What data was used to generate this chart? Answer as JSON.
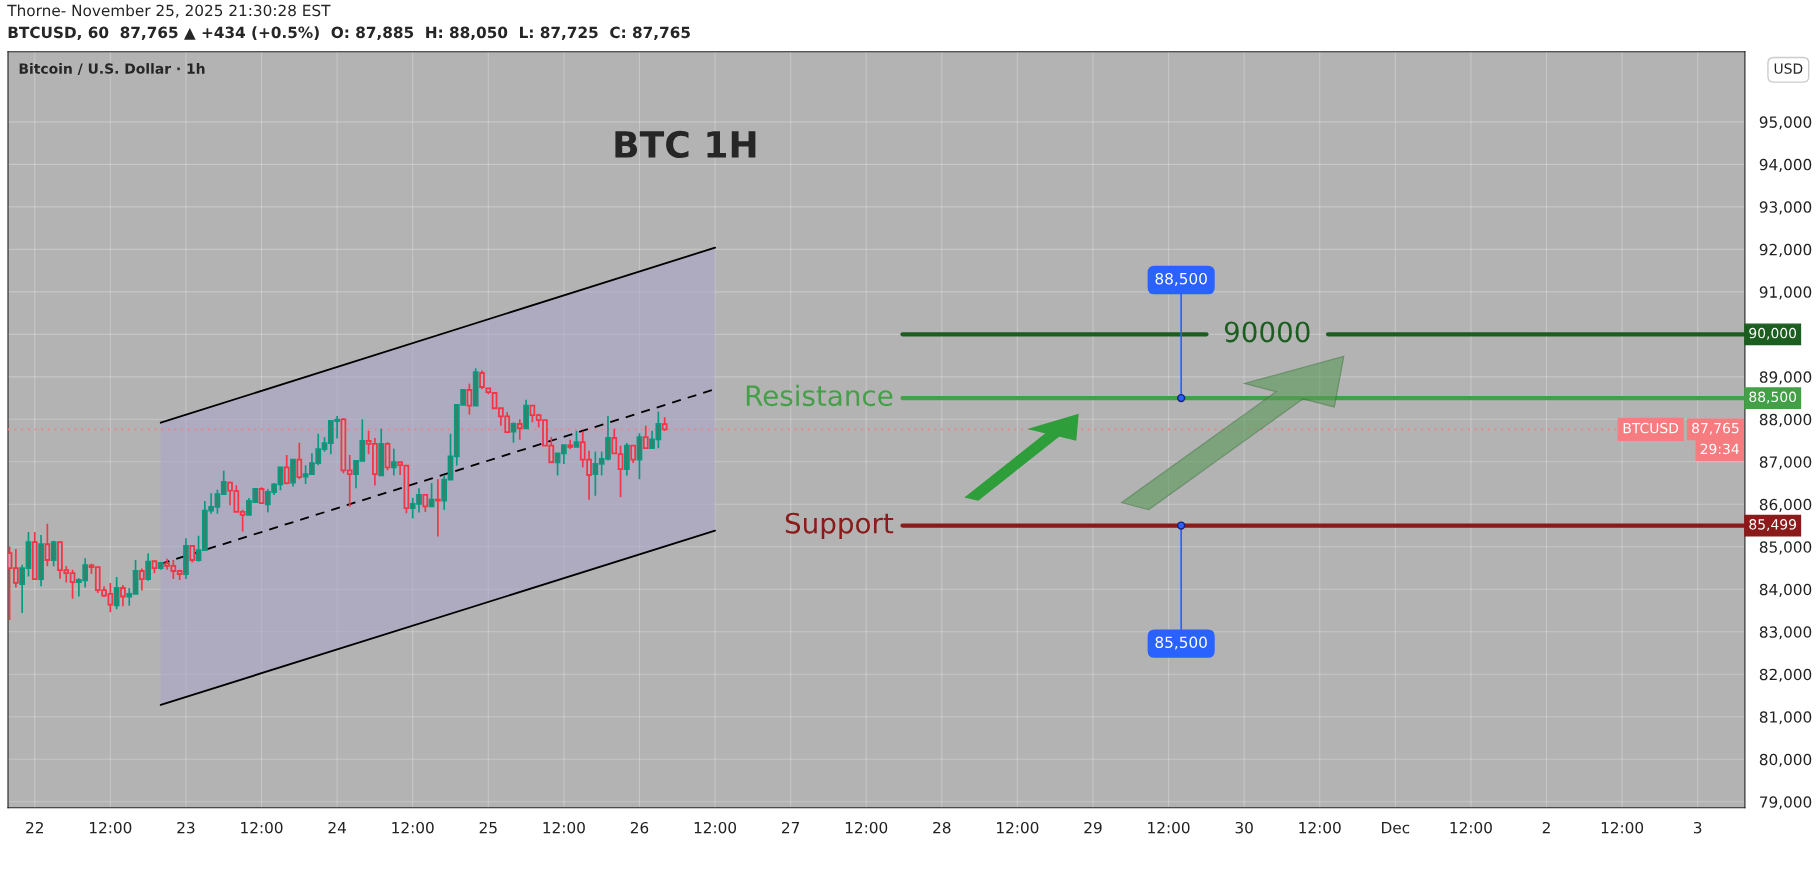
{
  "chart_data": {
    "type": "candlestick",
    "title": "BTC 1H",
    "subtitle": "Bitcoin / U.S. Dollar · 1h",
    "ylabel": "USD",
    "x": [
      "2025-11-21T20:00",
      "2025-11-21T21:00",
      "2025-11-21T22:00",
      "2025-11-21T23:00",
      "2025-11-22T00:00",
      "2025-11-22T01:00",
      "2025-11-22T02:00",
      "2025-11-22T03:00",
      "2025-11-22T04:00",
      "2025-11-22T05:00",
      "2025-11-22T06:00",
      "2025-11-22T07:00",
      "2025-11-22T08:00",
      "2025-11-22T09:00",
      "2025-11-22T10:00",
      "2025-11-22T11:00",
      "2025-11-22T12:00",
      "2025-11-22T13:00",
      "2025-11-22T14:00",
      "2025-11-22T15:00",
      "2025-11-22T16:00",
      "2025-11-22T17:00",
      "2025-11-22T18:00",
      "2025-11-22T19:00",
      "2025-11-22T20:00",
      "2025-11-22T21:00",
      "2025-11-22T22:00",
      "2025-11-22T23:00",
      "2025-11-23T00:00",
      "2025-11-23T01:00",
      "2025-11-23T02:00",
      "2025-11-23T03:00",
      "2025-11-23T04:00",
      "2025-11-23T05:00",
      "2025-11-23T06:00",
      "2025-11-23T07:00",
      "2025-11-23T08:00",
      "2025-11-23T09:00",
      "2025-11-23T10:00",
      "2025-11-23T11:00",
      "2025-11-23T12:00",
      "2025-11-23T13:00",
      "2025-11-23T14:00",
      "2025-11-23T15:00",
      "2025-11-23T16:00",
      "2025-11-23T17:00",
      "2025-11-23T18:00",
      "2025-11-23T19:00",
      "2025-11-23T20:00",
      "2025-11-23T21:00",
      "2025-11-23T22:00",
      "2025-11-23T23:00",
      "2025-11-24T00:00",
      "2025-11-24T01:00",
      "2025-11-24T02:00",
      "2025-11-24T03:00",
      "2025-11-24T04:00",
      "2025-11-24T05:00",
      "2025-11-24T06:00",
      "2025-11-24T07:00",
      "2025-11-24T08:00",
      "2025-11-24T09:00",
      "2025-11-24T10:00",
      "2025-11-24T11:00",
      "2025-11-24T12:00",
      "2025-11-24T13:00",
      "2025-11-24T14:00",
      "2025-11-24T15:00",
      "2025-11-24T16:00",
      "2025-11-24T17:00",
      "2025-11-24T18:00",
      "2025-11-24T19:00",
      "2025-11-24T20:00",
      "2025-11-24T21:00",
      "2025-11-24T22:00",
      "2025-11-24T23:00",
      "2025-11-25T00:00",
      "2025-11-25T01:00",
      "2025-11-25T02:00",
      "2025-11-25T03:00",
      "2025-11-25T04:00",
      "2025-11-25T05:00",
      "2025-11-25T06:00",
      "2025-11-25T07:00",
      "2025-11-25T08:00",
      "2025-11-25T09:00",
      "2025-11-25T10:00",
      "2025-11-25T11:00",
      "2025-11-25T12:00",
      "2025-11-25T13:00",
      "2025-11-25T14:00",
      "2025-11-25T15:00",
      "2025-11-25T16:00",
      "2025-11-25T17:00",
      "2025-11-25T18:00",
      "2025-11-25T19:00",
      "2025-11-25T20:00",
      "2025-11-25T21:00",
      "2025-11-25T22:00",
      "2025-11-25T23:00",
      "2025-11-26T00:00",
      "2025-11-26T01:00",
      "2025-11-26T02:00",
      "2025-11-26T03:00",
      "2025-11-26T04:00"
    ],
    "ohlc": [
      [
        84850,
        85010,
        83280,
        84500
      ],
      [
        84500,
        84950,
        84040,
        84150
      ],
      [
        84120,
        84580,
        83440,
        84500
      ],
      [
        84500,
        85350,
        84300,
        85110
      ],
      [
        85110,
        85350,
        84240,
        84240
      ],
      [
        84240,
        85280,
        84070,
        85060
      ],
      [
        85060,
        85540,
        84540,
        84690
      ],
      [
        84690,
        85140,
        84540,
        85110
      ],
      [
        85110,
        85130,
        84250,
        84450
      ],
      [
        84450,
        84550,
        84160,
        84380
      ],
      [
        84380,
        84460,
        83780,
        84170
      ],
      [
        84170,
        84260,
        83830,
        84220
      ],
      [
        84210,
        84730,
        84040,
        84570
      ],
      [
        84560,
        84600,
        84360,
        84520
      ],
      [
        84520,
        84520,
        83910,
        83980
      ],
      [
        83980,
        84070,
        83820,
        83850
      ],
      [
        83890,
        84150,
        83460,
        83640
      ],
      [
        83620,
        84290,
        83530,
        84030
      ],
      [
        84030,
        84100,
        83600,
        83830
      ],
      [
        83830,
        84030,
        83610,
        83890
      ],
      [
        83890,
        84690,
        83890,
        84430
      ],
      [
        84430,
        84490,
        83970,
        84240
      ],
      [
        84240,
        84840,
        84200,
        84650
      ],
      [
        84660,
        84660,
        84380,
        84500
      ],
      [
        84500,
        84650,
        84460,
        84620
      ],
      [
        84610,
        84720,
        84460,
        84550
      ],
      [
        84550,
        84690,
        84240,
        84430
      ],
      [
        84430,
        84460,
        84220,
        84360
      ],
      [
        84360,
        85200,
        84240,
        85020
      ],
      [
        85020,
        85020,
        84630,
        84690
      ],
      [
        84690,
        85260,
        84650,
        84920
      ],
      [
        84920,
        86080,
        84920,
        85850
      ],
      [
        85850,
        86260,
        85780,
        85940
      ],
      [
        85940,
        86340,
        85780,
        86240
      ],
      [
        86240,
        86790,
        86240,
        86530
      ],
      [
        86510,
        86530,
        85980,
        86320
      ],
      [
        86310,
        86450,
        85820,
        85820
      ],
      [
        85820,
        85870,
        85360,
        85750
      ],
      [
        85750,
        86150,
        85750,
        86080
      ],
      [
        86050,
        86360,
        86030,
        86360
      ],
      [
        86360,
        86400,
        86030,
        86030
      ],
      [
        86000,
        86360,
        85810,
        86290
      ],
      [
        86290,
        86500,
        86220,
        86470
      ],
      [
        86470,
        86870,
        86330,
        86870
      ],
      [
        86870,
        87160,
        86470,
        86500
      ],
      [
        86510,
        87050,
        86420,
        87050
      ],
      [
        87050,
        87450,
        86590,
        86640
      ],
      [
        86650,
        86920,
        86480,
        86710
      ],
      [
        86710,
        87200,
        86710,
        86970
      ],
      [
        86970,
        87660,
        86920,
        87300
      ],
      [
        87300,
        87580,
        87240,
        87440
      ],
      [
        87440,
        87960,
        87180,
        87960
      ],
      [
        87960,
        88080,
        87550,
        87990
      ],
      [
        88000,
        88030,
        86730,
        86800
      ],
      [
        86800,
        87160,
        85940,
        86710
      ],
      [
        86710,
        87020,
        86380,
        87020
      ],
      [
        87020,
        88000,
        87020,
        87490
      ],
      [
        87490,
        87730,
        87180,
        87420
      ],
      [
        87420,
        87560,
        86440,
        86710
      ],
      [
        86680,
        87780,
        86680,
        87420
      ],
      [
        87420,
        87460,
        86800,
        86870
      ],
      [
        86870,
        87310,
        86680,
        86990
      ],
      [
        86990,
        86990,
        86690,
        86920
      ],
      [
        86910,
        86910,
        85790,
        85910
      ],
      [
        85910,
        86150,
        85670,
        86010
      ],
      [
        86010,
        86380,
        85810,
        86220
      ],
      [
        86220,
        86220,
        85820,
        85950
      ],
      [
        85950,
        86500,
        85950,
        86110
      ],
      [
        86110,
        86590,
        85240,
        86090
      ],
      [
        86090,
        86690,
        85870,
        86580
      ],
      [
        86580,
        87660,
        86580,
        87130
      ],
      [
        87130,
        88340,
        86910,
        88340
      ],
      [
        88340,
        88690,
        88340,
        88690
      ],
      [
        88690,
        88840,
        88110,
        88320
      ],
      [
        88320,
        89200,
        88320,
        89110
      ],
      [
        89090,
        89150,
        88710,
        88760
      ],
      [
        88730,
        88730,
        88590,
        88640
      ],
      [
        88620,
        88620,
        88260,
        88260
      ],
      [
        88260,
        88260,
        87850,
        88070
      ],
      [
        88070,
        88170,
        87700,
        87700
      ],
      [
        87710,
        87930,
        87450,
        87890
      ],
      [
        87890,
        88000,
        87520,
        87790
      ],
      [
        87790,
        88460,
        87790,
        88320
      ],
      [
        88320,
        88320,
        87930,
        88100
      ],
      [
        88100,
        88130,
        87810,
        87980
      ],
      [
        87980,
        87980,
        87380,
        87380
      ],
      [
        87380,
        87580,
        86990,
        86990
      ],
      [
        86990,
        87200,
        86680,
        87200
      ],
      [
        87200,
        87390,
        86950,
        87390
      ],
      [
        87390,
        87520,
        87300,
        87350
      ],
      [
        87350,
        87730,
        87350,
        87460
      ],
      [
        87460,
        87710,
        86870,
        87050
      ],
      [
        87050,
        87260,
        86110,
        86690
      ],
      [
        86710,
        87240,
        86200,
        86950
      ],
      [
        86950,
        87240,
        86680,
        87070
      ],
      [
        87070,
        88080,
        87030,
        87560
      ],
      [
        87560,
        87780,
        87200,
        87200
      ],
      [
        87180,
        87380,
        86170,
        86830
      ],
      [
        86830,
        87440,
        86680,
        87380
      ],
      [
        87380,
        87390,
        86970,
        87050
      ],
      [
        87050,
        87670,
        86590,
        87580
      ],
      [
        87580,
        87850,
        87320,
        87320
      ],
      [
        87320,
        87730,
        87320,
        87530
      ],
      [
        87530,
        88180,
        87320,
        87890
      ],
      [
        87885,
        88050,
        87725,
        87765
      ]
    ],
    "series": [
      {
        "type": "line",
        "color": "#000000",
        "line_style": "dashed",
        "x": [
          "2025-11-22T20:00",
          "2025-11-26T12:00"
        ],
        "values": [
          84600,
          88710
        ],
        "lower": [
          81280,
          85380
        ],
        "upper": [
          87920,
          92040
        ]
      },
      {
        "type": "line",
        "color": "#000000",
        "line_style": "solid",
        "x": [
          "2025-11-22T20:00",
          "2025-11-26T12:00"
        ],
        "values": [
          87920,
          92040
        ]
      },
      {
        "type": "line",
        "color": "#000000",
        "line_style": "solid",
        "x": [
          "2025-11-22T20:00",
          "2025-11-26T12:00"
        ],
        "values": [
          81280,
          85380
        ]
      }
    ],
    "xlim": [
      "2025-11-21T19:45",
      "2025-12-03T07:30"
    ],
    "xticks": [
      {
        "value": "2025-11-22",
        "label": "22"
      },
      {
        "value": "2025-11-22T12:00",
        "label": "12:00"
      },
      {
        "value": "2025-11-23",
        "label": "23"
      },
      {
        "value": "2025-11-23T12:00",
        "label": "12:00"
      },
      {
        "value": "2025-11-24",
        "label": "24"
      },
      {
        "value": "2025-11-24T12:00",
        "label": "12:00"
      },
      {
        "value": "2025-11-25",
        "label": "25"
      },
      {
        "value": "2025-11-25T12:00",
        "label": "12:00"
      },
      {
        "value": "2025-11-26",
        "label": "26"
      },
      {
        "value": "2025-11-26T12:00",
        "label": "12:00"
      },
      {
        "value": "2025-11-27",
        "label": "27"
      },
      {
        "value": "2025-11-27T12:00",
        "label": "12:00"
      },
      {
        "value": "2025-11-28",
        "label": "28"
      },
      {
        "value": "2025-11-28T12:00",
        "label": "12:00"
      },
      {
        "value": "2025-11-29",
        "label": "29"
      },
      {
        "value": "2025-11-29T12:00",
        "label": "12:00"
      },
      {
        "value": "2025-11-30",
        "label": "30"
      },
      {
        "value": "2025-11-30T12:00",
        "label": "12:00"
      },
      {
        "value": "2025-12-01",
        "label": "Dec"
      },
      {
        "value": "2025-12-01T12:00",
        "label": "12:00"
      },
      {
        "value": "2025-12-02",
        "label": "2"
      },
      {
        "value": "2025-12-02T12:00",
        "label": "12:00"
      },
      {
        "value": "2025-12-03",
        "label": "3"
      }
    ],
    "ylim": [
      78860,
      96650
    ],
    "yticks": [
      {
        "value": 79000,
        "label": "79,000"
      },
      {
        "value": 80000,
        "label": "80,000"
      },
      {
        "value": 81000,
        "label": "81,000"
      },
      {
        "value": 82000,
        "label": "82,000"
      },
      {
        "value": 83000,
        "label": "83,000"
      },
      {
        "value": 84000,
        "label": "84,000"
      },
      {
        "value": 85000,
        "label": "85,000"
      },
      {
        "value": 86000,
        "label": "86,000"
      },
      {
        "value": 87000,
        "label": "87,000"
      },
      {
        "value": 88000,
        "label": "88,000"
      },
      {
        "value": 89000,
        "label": "89,000"
      },
      {
        "value": 90000,
        "label": null
      },
      {
        "value": 91000,
        "label": "91,000"
      },
      {
        "value": 92000,
        "label": "92,000"
      },
      {
        "value": 93000,
        "label": "93,000"
      },
      {
        "value": 94000,
        "label": "94,000"
      },
      {
        "value": 95000,
        "label": "95,000"
      }
    ],
    "ref_lines": [
      {
        "axis": "y",
        "value": 90000,
        "label": "90000",
        "color": "#1b5e20",
        "line_style": "solid"
      },
      {
        "axis": "y",
        "value": 88500,
        "label": "Resistance",
        "color": "#43a047",
        "line_style": "solid"
      },
      {
        "axis": "y",
        "value": 85499,
        "label": "Support",
        "color": "#8b1a1a",
        "line_style": "solid"
      },
      {
        "axis": "y",
        "value": 87765,
        "label": "BTCUSD",
        "color": "#f77c80",
        "line_style": "dotted"
      }
    ],
    "annotations": [
      "Thorne- November 25, 2025 21:30:28 EST",
      "BTCUSD, 60  87,765 ▲ +434 (+0.5%)  O: 87,885  H: 88,050  L: 87,725  C: 87,765",
      "90,000",
      "88,500",
      "85,499",
      "87,765",
      "29:34",
      {
        "text": "88,500",
        "x": "2025-11-29T14:00",
        "y": 88500
      },
      {
        "text": "85,500",
        "x": "2025-11-29T14:00",
        "y": 85500
      }
    ],
    "grid": true
  }
}
